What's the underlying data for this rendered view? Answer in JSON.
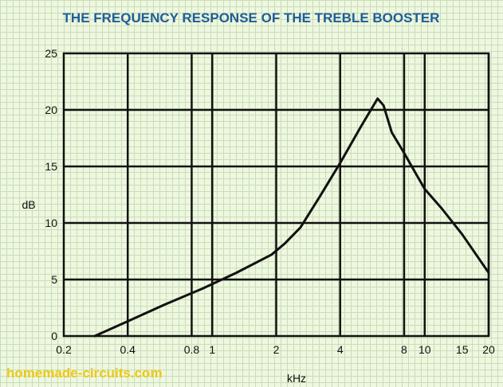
{
  "colors": {
    "title": "#1f5d99",
    "watermark": "#f0c814",
    "frame": "#111111",
    "curve": "#111111"
  },
  "chart_data": {
    "type": "line",
    "title": "THE FREQUENCY RESPONSE OF THE TREBLE BOOSTER",
    "xlabel": "kHz",
    "ylabel": "dB",
    "xscale": "log",
    "xlim": [
      0.2,
      20
    ],
    "ylim": [
      0,
      25
    ],
    "grid": true,
    "x_ticks": [
      0.2,
      0.4,
      0.8,
      1,
      2,
      4,
      8,
      10,
      15,
      20
    ],
    "x_tick_labels": [
      "0.2",
      "0.4",
      "0.8",
      "1",
      "2",
      "4",
      "8",
      "10",
      "15",
      "20"
    ],
    "x_gridlines": [
      0.4,
      0.8,
      1,
      2,
      4,
      8,
      10,
      20
    ],
    "y_ticks": [
      0,
      5,
      10,
      15,
      20,
      25
    ],
    "series": [
      {
        "x": [
          0.28,
          0.4,
          0.6,
          0.9,
          1.3,
          1.9,
          2.2,
          2.6,
          3.2,
          4.0,
          5.0,
          6.0,
          6.4,
          7.0,
          8.0,
          9.0,
          10.0,
          12.0,
          15.0,
          20.0
        ],
        "y": [
          0,
          1.3,
          2.8,
          4.2,
          5.6,
          7.2,
          8.2,
          9.6,
          12.3,
          15.3,
          18.5,
          21.0,
          20.4,
          18.0,
          16.2,
          14.5,
          13.0,
          11.3,
          9.0,
          5.6
        ]
      }
    ]
  },
  "watermark": "homemade-circuits.com"
}
